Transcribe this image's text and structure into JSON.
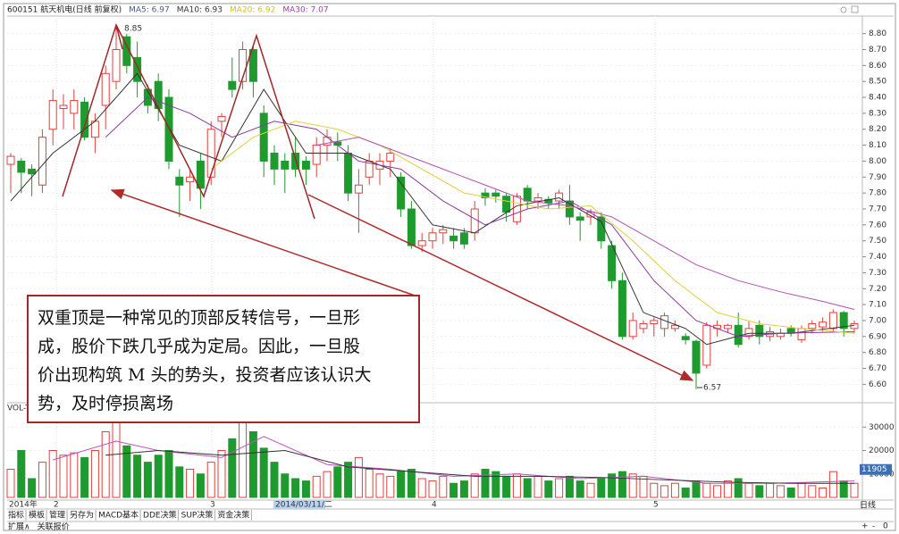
{
  "chart_data": {
    "type": "candlestick",
    "header": [
      {
        "text": "600151 航天机电(日线 前复权)",
        "color": "#222222"
      },
      {
        "text": "MA5: 6.97",
        "color": "#4a5a8a"
      },
      {
        "text": "MA10: 6.93",
        "color": "#333333"
      },
      {
        "text": "MA20: 6.92",
        "color": "#d4c020"
      },
      {
        "text": "MA30: 7.07",
        "color": "#a040a0"
      }
    ],
    "up_color": "#e0403c",
    "down_color": "#1e9a2e",
    "grid": true,
    "open": [
      7.98,
      8.0,
      7.95,
      7.85,
      8.2,
      8.33,
      8.3,
      8.37,
      8.15,
      8.35,
      8.5,
      8.78,
      8.65,
      8.45,
      8.5,
      8.4,
      7.9,
      7.87,
      8.0,
      7.9,
      8.25,
      8.5,
      8.5,
      8.7,
      8.3,
      8.05,
      8.0,
      8.05,
      8.0,
      7.98,
      8.1,
      8.12,
      8.05,
      7.8,
      7.9,
      7.95,
      8.0,
      7.9,
      7.7,
      7.47,
      7.5,
      7.55,
      7.53,
      7.55,
      7.55,
      7.8,
      7.8,
      7.78,
      7.62,
      7.83,
      7.75,
      7.76,
      7.75,
      7.75,
      7.65,
      7.65,
      7.65,
      7.47,
      7.25,
      6.9,
      6.95,
      6.98,
      6.95,
      6.95,
      6.9,
      6.87,
      6.72,
      6.95,
      6.95,
      6.97,
      6.9,
      6.97,
      6.9,
      6.9,
      6.95,
      6.88,
      6.95,
      6.96,
      6.95,
      7.05,
      6.95
    ],
    "high": [
      8.05,
      8.02,
      7.98,
      8.2,
      8.45,
      8.42,
      8.45,
      8.4,
      8.3,
      8.6,
      8.85,
      8.8,
      8.75,
      8.48,
      8.55,
      8.45,
      7.95,
      7.95,
      8.05,
      8.25,
      8.3,
      8.65,
      8.75,
      8.72,
      8.35,
      8.1,
      8.05,
      8.15,
      8.03,
      8.15,
      8.2,
      8.18,
      8.1,
      7.95,
      8.05,
      8.05,
      8.08,
      7.93,
      7.75,
      7.55,
      7.58,
      7.6,
      7.58,
      7.58,
      7.75,
      7.83,
      7.82,
      7.8,
      7.8,
      7.85,
      7.8,
      7.78,
      7.82,
      7.85,
      7.68,
      7.7,
      7.68,
      7.5,
      7.3,
      7.05,
      7.0,
      7.02,
      7.05,
      7.0,
      6.92,
      6.88,
      6.99,
      7.0,
      6.98,
      7.05,
      7.0,
      7.0,
      6.96,
      6.95,
      6.97,
      6.97,
      7.0,
      7.02,
      7.07,
      7.06,
      7.0
    ],
    "low": [
      7.8,
      7.8,
      7.78,
      7.8,
      8.1,
      8.2,
      8.2,
      8.13,
      8.05,
      8.2,
      8.45,
      8.55,
      8.4,
      8.3,
      8.25,
      7.95,
      7.65,
      7.75,
      7.7,
      7.85,
      8.15,
      8.4,
      8.45,
      8.4,
      7.9,
      7.85,
      7.8,
      7.9,
      7.85,
      7.9,
      8.0,
      8.0,
      7.75,
      7.55,
      7.85,
      7.85,
      7.9,
      7.65,
      7.45,
      7.43,
      7.45,
      7.48,
      7.45,
      7.45,
      7.5,
      7.72,
      7.74,
      7.62,
      7.6,
      7.7,
      7.7,
      7.7,
      7.7,
      7.6,
      7.5,
      7.6,
      7.45,
      7.2,
      6.88,
      6.88,
      6.92,
      6.9,
      6.9,
      6.93,
      6.85,
      6.57,
      6.7,
      6.9,
      6.92,
      6.83,
      6.88,
      6.85,
      6.87,
      6.88,
      6.9,
      6.86,
      6.92,
      6.93,
      6.93,
      6.9,
      6.92
    ],
    "close": [
      8.03,
      7.93,
      7.92,
      8.15,
      8.38,
      8.35,
      8.38,
      8.15,
      8.25,
      8.55,
      8.7,
      8.6,
      8.5,
      8.35,
      8.33,
      8.0,
      7.85,
      7.9,
      7.83,
      8.2,
      8.28,
      8.45,
      8.7,
      8.5,
      8.0,
      7.95,
      7.95,
      7.95,
      7.95,
      8.1,
      8.15,
      8.1,
      7.8,
      7.85,
      8.0,
      8.0,
      8.05,
      7.7,
      7.47,
      7.5,
      7.55,
      7.57,
      7.5,
      7.48,
      7.7,
      7.77,
      7.78,
      7.68,
      7.78,
      7.75,
      7.77,
      7.74,
      7.8,
      7.65,
      7.63,
      7.68,
      7.5,
      7.25,
      6.9,
      7.0,
      6.98,
      7.0,
      7.03,
      6.97,
      6.88,
      6.67,
      6.97,
      6.97,
      6.97,
      6.85,
      6.95,
      6.9,
      6.93,
      6.92,
      6.92,
      6.95,
      6.98,
      6.99,
      7.05,
      6.95,
      6.98
    ],
    "volume": [
      12000,
      20000,
      8000,
      15000,
      20000,
      18000,
      19000,
      17000,
      20000,
      28000,
      40000,
      22000,
      18000,
      15000,
      18000,
      20000,
      13000,
      12000,
      10000,
      15000,
      20000,
      25000,
      38000,
      28000,
      21000,
      15000,
      10000,
      8000,
      7000,
      9000,
      11000,
      13000,
      15000,
      17000,
      12000,
      10000,
      9000,
      11000,
      12000,
      8000,
      7000,
      9000,
      6000,
      7000,
      10000,
      12000,
      11000,
      9000,
      10000,
      8000,
      9000,
      7000,
      8000,
      9000,
      7000,
      6000,
      8000,
      10000,
      11000,
      10000,
      9000,
      6000,
      5000,
      6000,
      4000,
      7000,
      6000,
      5000,
      7000,
      8000,
      6000,
      5000,
      6000,
      5000,
      4000,
      6000,
      5000,
      4000,
      11000,
      7000,
      6000
    ],
    "ma": [
      {
        "color": "#333333",
        "x": [
          0,
          4,
          8,
          12,
          16,
          20,
          24,
          28,
          32,
          36,
          40,
          44,
          48,
          52,
          56,
          60,
          64,
          66,
          70,
          74,
          80
        ],
        "values": [
          7.75,
          8.05,
          8.25,
          8.55,
          8.1,
          8.0,
          8.45,
          8.05,
          8.05,
          7.95,
          7.6,
          7.55,
          7.72,
          7.77,
          7.62,
          7.05,
          6.95,
          6.85,
          6.92,
          6.92,
          6.97
        ]
      },
      {
        "color": "#8a3aa0",
        "x": [
          9,
          13,
          17,
          21,
          25,
          29,
          33,
          37,
          41,
          45,
          49,
          53,
          57,
          61,
          65,
          69,
          73,
          80
        ],
        "values": [
          8.15,
          8.4,
          8.3,
          8.15,
          8.25,
          8.2,
          8.0,
          7.95,
          7.75,
          7.6,
          7.7,
          7.75,
          7.6,
          7.25,
          7.0,
          6.9,
          6.92,
          6.93
        ]
      },
      {
        "color": "#e0d040",
        "x": [
          19,
          23,
          27,
          31,
          35,
          39,
          43,
          47,
          51,
          55,
          59,
          63,
          67,
          71,
          75,
          80
        ],
        "values": [
          7.95,
          8.15,
          8.25,
          8.2,
          8.1,
          7.95,
          7.8,
          7.75,
          7.7,
          7.72,
          7.5,
          7.25,
          7.05,
          6.98,
          6.95,
          6.92
        ]
      },
      {
        "color": "#b050b0",
        "x": [
          29,
          33,
          37,
          41,
          45,
          49,
          53,
          57,
          61,
          65,
          69,
          73,
          77,
          80
        ],
        "values": [
          8.1,
          8.15,
          8.05,
          7.95,
          7.85,
          7.75,
          7.72,
          7.65,
          7.5,
          7.35,
          7.25,
          7.18,
          7.12,
          7.07
        ]
      }
    ],
    "vol_ma": [
      {
        "color": "#c050c0",
        "x": [
          4,
          10,
          14,
          20,
          24,
          30,
          36,
          42,
          48,
          54,
          60,
          66,
          72,
          80
        ],
        "values": [
          16000,
          24000,
          20000,
          17000,
          26000,
          14000,
          12000,
          9000,
          10000,
          8000,
          9000,
          6000,
          6000,
          7000
        ]
      },
      {
        "color": "#333333",
        "x": [
          9,
          14,
          20,
          26,
          32,
          38,
          44,
          50,
          56,
          62,
          68,
          74,
          80
        ],
        "values": [
          18000,
          20000,
          18000,
          20000,
          13000,
          11000,
          9000,
          9000,
          8500,
          7500,
          6500,
          6000,
          6000
        ]
      }
    ],
    "ylim": [
      6.49,
      8.91
    ],
    "yticks": [
      {
        "value": 6.6,
        "label": "6.60"
      },
      {
        "value": 6.7,
        "label": "6.70"
      },
      {
        "value": 6.8,
        "label": "6.80"
      },
      {
        "value": 6.9,
        "label": "6.90"
      },
      {
        "value": 7.0,
        "label": "7.00"
      },
      {
        "value": 7.1,
        "label": "7.10"
      },
      {
        "value": 7.2,
        "label": "7.20"
      },
      {
        "value": 7.3,
        "label": "7.30"
      },
      {
        "value": 7.4,
        "label": "7.40"
      },
      {
        "value": 7.5,
        "label": "7.50"
      },
      {
        "value": 7.6,
        "label": "7.60"
      },
      {
        "value": 7.7,
        "label": "7.70"
      },
      {
        "value": 7.8,
        "label": "7.80"
      },
      {
        "value": 7.9,
        "label": "7.90"
      },
      {
        "value": 8.0,
        "label": "8.00"
      },
      {
        "value": 8.1,
        "label": "8.10"
      },
      {
        "value": 8.2,
        "label": "8.20"
      },
      {
        "value": 8.3,
        "label": "8.30"
      },
      {
        "value": 8.4,
        "label": "8.40"
      },
      {
        "value": 8.5,
        "label": "8.50"
      },
      {
        "value": 8.6,
        "label": "8.60"
      },
      {
        "value": 8.7,
        "label": "8.70"
      },
      {
        "value": 8.8,
        "label": "8.80"
      }
    ],
    "y2lim": [
      0,
      40000
    ],
    "y2ticks": [
      10000,
      20000,
      30000
    ],
    "vol_label": "VOL-T",
    "vol_marker": 11905,
    "high_label": "8.85",
    "low_label": "6.57",
    "x_labels": [
      "2014年",
      "2",
      "3",
      "2014/03/11/二",
      "4",
      "5"
    ],
    "annotation": [
      "双重顶是一种常见的顶部反转信号，一旦形",
      "成，股价下跌几乎成为定局。因此，一旦股",
      "价出现构筑 M 头的势头，投资者应该认识大",
      "势，及时停损离场"
    ],
    "toolbar": [
      "指标",
      "模板",
      "管理",
      "另存为",
      "MACD基本",
      "DDE决策",
      "SUP决策",
      "资金决策"
    ],
    "toolbar_right": [
      "日线",
      "+",
      "-",
      "0"
    ],
    "footer": [
      "扩展∧",
      "关联报价"
    ]
  }
}
